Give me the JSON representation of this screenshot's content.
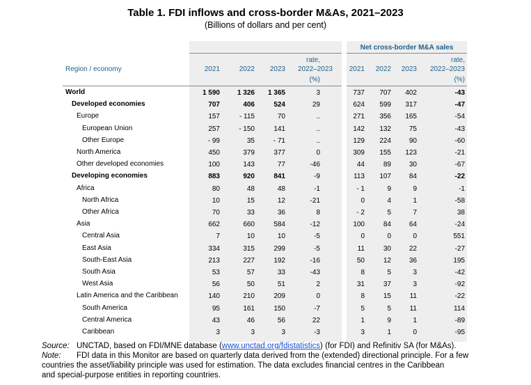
{
  "title": "Table 1. FDI inflows and cross-border M&As, 2021–2023",
  "subtitle": "(Billions of dollars and per cent)",
  "header": {
    "region": "Region / economy",
    "group_right": "Net cross-border M&A sales",
    "left": {
      "y2021": "2021",
      "y2022": "2022",
      "y2023": "2023",
      "rate1": "rate,",
      "rate2": "2022–2023",
      "pct": "(%)"
    },
    "right": {
      "y2021": "2021",
      "y2022": "2022",
      "y2023": "2023",
      "rate1": "rate,",
      "rate2": "2022–2023",
      "pct": "(%)"
    }
  },
  "rows": [
    {
      "label": "World",
      "indent": 0,
      "bold": true,
      "fdi": [
        "1 590",
        "1 326",
        "1 365",
        "3"
      ],
      "ma": [
        "737",
        "707",
        "402",
        "-43"
      ]
    },
    {
      "label": "Developed economies",
      "indent": 1,
      "bold": true,
      "fdi": [
        "707",
        "406",
        "524",
        "29"
      ],
      "ma": [
        "624",
        "599",
        "317",
        "-47"
      ]
    },
    {
      "label": "Europe",
      "indent": 2,
      "bold": false,
      "fdi": [
        "157",
        "- 115",
        "70",
        ".."
      ],
      "ma": [
        "271",
        "356",
        "165",
        "-54"
      ]
    },
    {
      "label": "European Union",
      "indent": 3,
      "bold": false,
      "fdi": [
        "257",
        "- 150",
        "141",
        ".."
      ],
      "ma": [
        "142",
        "132",
        "75",
        "-43"
      ]
    },
    {
      "label": "Other Europe",
      "indent": 3,
      "bold": false,
      "fdi": [
        "- 99",
        "35",
        "- 71",
        ".."
      ],
      "ma": [
        "129",
        "224",
        "90",
        "-60"
      ]
    },
    {
      "label": "North America",
      "indent": 2,
      "bold": false,
      "fdi": [
        "450",
        "379",
        "377",
        "0"
      ],
      "ma": [
        "309",
        "155",
        "123",
        "-21"
      ]
    },
    {
      "label": "Other developed economies",
      "indent": 2,
      "bold": false,
      "fdi": [
        "100",
        "143",
        "77",
        "-46"
      ],
      "ma": [
        "44",
        "89",
        "30",
        "-67"
      ]
    },
    {
      "label": "Developing economies",
      "indent": 1,
      "bold": true,
      "fdi": [
        "883",
        "920",
        "841",
        "-9"
      ],
      "ma": [
        "113",
        "107",
        "84",
        "-22"
      ]
    },
    {
      "label": "Africa",
      "indent": 2,
      "bold": false,
      "fdi": [
        "80",
        "48",
        "48",
        "-1"
      ],
      "ma": [
        "- 1",
        "9",
        "9",
        "-1"
      ]
    },
    {
      "label": "North Africa",
      "indent": 3,
      "bold": false,
      "fdi": [
        "10",
        "15",
        "12",
        "-21"
      ],
      "ma": [
        "0",
        "4",
        "1",
        "-58"
      ]
    },
    {
      "label": "Other Africa",
      "indent": 3,
      "bold": false,
      "fdi": [
        "70",
        "33",
        "36",
        "8"
      ],
      "ma": [
        "- 2",
        "5",
        "7",
        "38"
      ]
    },
    {
      "label": "Asia",
      "indent": 2,
      "bold": false,
      "fdi": [
        "662",
        "660",
        "584",
        "-12"
      ],
      "ma": [
        "100",
        "84",
        "64",
        "-24"
      ]
    },
    {
      "label": "Central Asia",
      "indent": 3,
      "bold": false,
      "fdi": [
        "7",
        "10",
        "10",
        "-5"
      ],
      "ma": [
        "0",
        "0",
        "0",
        "551"
      ]
    },
    {
      "label": "East Asia",
      "indent": 3,
      "bold": false,
      "fdi": [
        "334",
        "315",
        "299",
        "-5"
      ],
      "ma": [
        "11",
        "30",
        "22",
        "-27"
      ]
    },
    {
      "label": "South-East Asia",
      "indent": 3,
      "bold": false,
      "fdi": [
        "213",
        "227",
        "192",
        "-16"
      ],
      "ma": [
        "50",
        "12",
        "36",
        "195"
      ]
    },
    {
      "label": "South Asia",
      "indent": 3,
      "bold": false,
      "fdi": [
        "53",
        "57",
        "33",
        "-43"
      ],
      "ma": [
        "8",
        "5",
        "3",
        "-42"
      ]
    },
    {
      "label": "West Asia",
      "indent": 3,
      "bold": false,
      "fdi": [
        "56",
        "50",
        "51",
        "2"
      ],
      "ma": [
        "31",
        "37",
        "3",
        "-92"
      ]
    },
    {
      "label": "Latin America and the Caribbean",
      "indent": 2,
      "bold": false,
      "fdi": [
        "140",
        "210",
        "209",
        "0"
      ],
      "ma": [
        "8",
        "15",
        "11",
        "-22"
      ]
    },
    {
      "label": "South America",
      "indent": 3,
      "bold": false,
      "fdi": [
        "95",
        "161",
        "150",
        "-7"
      ],
      "ma": [
        "5",
        "5",
        "11",
        "114"
      ]
    },
    {
      "label": "Central America",
      "indent": 3,
      "bold": false,
      "fdi": [
        "43",
        "46",
        "56",
        "22"
      ],
      "ma": [
        "1",
        "9",
        "1",
        "-89"
      ]
    },
    {
      "label": "Caribbean",
      "indent": 3,
      "bold": false,
      "fdi": [
        "3",
        "3",
        "3",
        "-3"
      ],
      "ma": [
        "3",
        "1",
        "0",
        "-95"
      ]
    }
  ],
  "footnotes": {
    "source_label": "Source:",
    "source_pre": "UNCTAD, based on FDI/MNE database (",
    "source_link": "www.unctad.org/fdistatistics",
    "source_post": ") (for FDI) and Refinitiv SA (for M&As).",
    "note_label": "Note:",
    "note_line1": "FDI data in this Monitor are based on quarterly data derived from the (extended) directional principle. For a few",
    "note_line2": "countries the asset/liability principle was used for estimation. The data excludes financial centres in the Caribbean",
    "note_line3": "and special-purpose entities in reporting countries."
  }
}
